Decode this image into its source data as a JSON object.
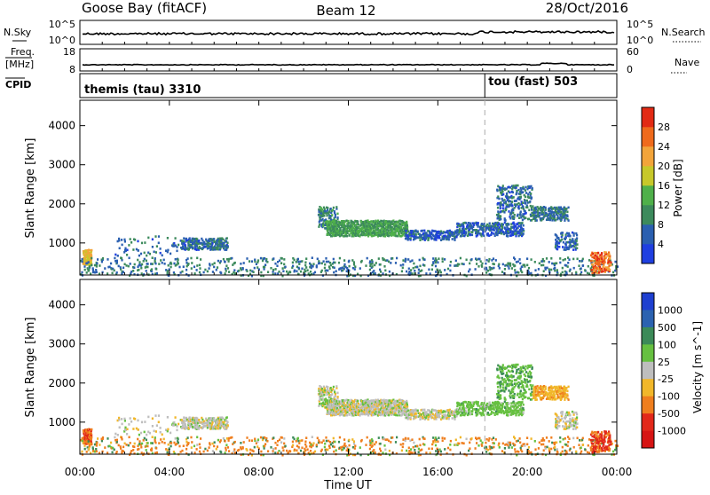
{
  "header": {
    "station": "Goose Bay (fitACF)",
    "beam": "Beam 12",
    "date": "28/Oct/2016"
  },
  "noise_panel": {
    "left_label": "N.Sky",
    "right_label": "N.Search",
    "left_ticks": [
      "10^5",
      "10^0"
    ],
    "right_ticks": [
      "10^5",
      "10^0"
    ]
  },
  "freq_panel": {
    "left_label_1": "Freq.",
    "left_label_2": "[MHz]",
    "right_label": "Nave",
    "left_ticks": [
      "18",
      "8"
    ],
    "right_ticks": [
      "60",
      "0"
    ]
  },
  "cpid_panel": {
    "label": "CPID",
    "segments": [
      {
        "name": "themis (tau) 3310",
        "start_hour": 0
      },
      {
        "name": "tou (fast) 503",
        "start_hour": 18.1
      }
    ]
  },
  "chart_data": [
    {
      "type": "heatmap",
      "title": "",
      "ylabel": "Slant Range [km]",
      "ylim": [
        180,
        4650
      ],
      "yticks": [
        "1000",
        "2000",
        "3000",
        "4000"
      ],
      "colorbar": {
        "label": "Power [dB]",
        "range": [
          0,
          32
        ],
        "ticks": [
          "4",
          "8",
          "12",
          "16",
          "20",
          "24",
          "28"
        ]
      }
    },
    {
      "type": "heatmap",
      "title": "",
      "ylabel": "Slant Range [km]",
      "ylim": [
        180,
        4650
      ],
      "yticks": [
        "1000",
        "2000",
        "3000",
        "4000"
      ],
      "xlabel": "Time UT",
      "xlim": [
        0,
        24
      ],
      "xticks": [
        "00:00",
        "04:00",
        "08:00",
        "12:00",
        "16:00",
        "20:00",
        "00:00"
      ],
      "colorbar": {
        "label": "Velocity [m s^-1]",
        "ticks": [
          "1000",
          "500",
          "100",
          "25",
          "-25",
          "-100",
          "-500",
          "-1000"
        ]
      }
    }
  ],
  "echo_regions": [
    {
      "t0": 0.1,
      "t1": 0.5,
      "r0": 450,
      "r1": 850,
      "density": 0.9,
      "power": 20,
      "vel": -400
    },
    {
      "t0": 0.0,
      "t1": 24,
      "r0": 180,
      "r1": 650,
      "density": 0.12,
      "power": 8,
      "vel": -150
    },
    {
      "t0": 1.5,
      "t1": 4.5,
      "r0": 700,
      "r1": 1200,
      "density": 0.08,
      "power": 7,
      "vel": 0
    },
    {
      "t0": 4.5,
      "t1": 6.6,
      "r0": 850,
      "r1": 1150,
      "density": 0.6,
      "power": 7,
      "vel": 0
    },
    {
      "t0": 10.6,
      "t1": 11.5,
      "r0": 1400,
      "r1": 1950,
      "density": 0.45,
      "power": 9,
      "vel": 0
    },
    {
      "t0": 11.0,
      "t1": 14.6,
      "r0": 1200,
      "r1": 1600,
      "density": 0.75,
      "power": 12,
      "vel": 0
    },
    {
      "t0": 14.5,
      "t1": 16.8,
      "r0": 1100,
      "r1": 1350,
      "density": 0.55,
      "power": 6,
      "vel": 0
    },
    {
      "t0": 16.8,
      "t1": 19.8,
      "r0": 1200,
      "r1": 1550,
      "density": 0.5,
      "power": 6,
      "vel": 60
    },
    {
      "t0": 18.6,
      "t1": 20.2,
      "r0": 1600,
      "r1": 2500,
      "density": 0.3,
      "power": 7,
      "vel": 80
    },
    {
      "t0": 20.2,
      "t1": 21.8,
      "r0": 1600,
      "r1": 1950,
      "density": 0.55,
      "power": 8,
      "vel": -80
    },
    {
      "t0": 21.2,
      "t1": 22.2,
      "r0": 850,
      "r1": 1300,
      "density": 0.35,
      "power": 6,
      "vel": 0
    },
    {
      "t0": 22.8,
      "t1": 23.7,
      "r0": 250,
      "r1": 800,
      "density": 0.55,
      "power": 26,
      "vel": -600
    }
  ]
}
